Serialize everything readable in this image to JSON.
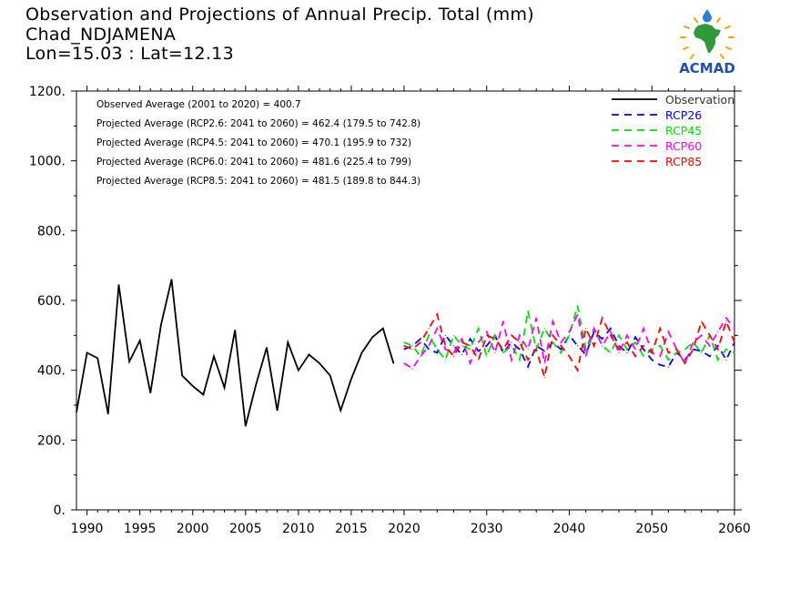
{
  "header": {
    "title": "Observation and Projections of Annual Precip. Total (mm)",
    "location": "Chad_NDJAMENA",
    "coords": "Lon=15.03 : Lat=12.13"
  },
  "logo": {
    "text": "ACMAD",
    "colors": {
      "africa": "#2e9a3c",
      "rays": "#f0a500",
      "drop": "#2a7fd4",
      "text": "#1f4fa8"
    }
  },
  "chart_data": {
    "type": "line",
    "xlim": [
      1989,
      2060
    ],
    "ylim": [
      0,
      1200
    ],
    "y_ticks": [
      0,
      200,
      400,
      600,
      800,
      1000,
      1200
    ],
    "y_tick_labels": [
      "0.",
      "200.",
      "400.",
      "600.",
      "800.",
      "1000.",
      "1200."
    ],
    "x_ticks_left": [
      1990,
      1995,
      2000,
      2005,
      2010,
      2015,
      2020
    ],
    "x_ticks_right": [
      2030,
      2040,
      2050,
      2060
    ],
    "annotations": [
      "Observed Average (2001 to 2020) = 400.7",
      "Projected Average (RCP2.6: 2041 to 2060) = 462.4 (179.5 to 742.8)",
      "Projected Average (RCP4.5: 2041 to 2060) = 470.1 (195.9 to 732)",
      "Projected Average (RCP6.0: 2041 to 2060) = 481.6 (225.4 to 799)",
      "Projected Average (RCP8.5: 2041 to 2060) = 481.5 (189.8 to 844.3)"
    ],
    "legend_position": "top-right",
    "series": [
      {
        "name": "Observation",
        "color": "#000000",
        "dash": false,
        "x": [
          1989,
          1990,
          1991,
          1992,
          1993,
          1994,
          1995,
          1996,
          1997,
          1998,
          1999,
          2000,
          2001,
          2002,
          2003,
          2004,
          2005,
          2006,
          2007,
          2008,
          2009,
          2010,
          2011,
          2012,
          2013,
          2014,
          2015,
          2016,
          2017,
          2018,
          2019,
          2020
        ],
        "values": [
          280,
          450,
          435,
          275,
          645,
          425,
          485,
          335,
          530,
          660,
          385,
          355,
          330,
          440,
          350,
          515,
          240,
          360,
          465,
          285,
          480,
          400,
          445,
          420,
          385,
          285,
          375,
          450,
          495,
          520,
          420,
          null
        ]
      },
      {
        "name": "RCP26",
        "color": "#0000ff",
        "dash": true,
        "x": [
          2020,
          2021,
          2022,
          2023,
          2024,
          2025,
          2026,
          2027,
          2028,
          2029,
          2030,
          2031,
          2032,
          2033,
          2034,
          2035,
          2036,
          2037,
          2038,
          2039,
          2040,
          2041,
          2042,
          2043,
          2044,
          2045,
          2046,
          2047,
          2048,
          2049,
          2050,
          2051,
          2052,
          2053,
          2054,
          2055,
          2056,
          2057,
          2058,
          2059,
          2060
        ],
        "values": [
          460,
          470,
          490,
          460,
          450,
          500,
          470,
          445,
          490,
          455,
          470,
          500,
          450,
          480,
          460,
          410,
          470,
          455,
          480,
          460,
          500,
          470,
          445,
          510,
          490,
          520,
          470,
          450,
          495,
          460,
          430,
          415,
          410,
          450,
          430,
          460,
          455,
          440,
          470,
          430,
          480
        ]
      },
      {
        "name": "RCP45",
        "color": "#00dd00",
        "dash": true,
        "x": [
          2020,
          2021,
          2022,
          2023,
          2024,
          2025,
          2026,
          2027,
          2028,
          2029,
          2030,
          2031,
          2032,
          2033,
          2034,
          2035,
          2036,
          2037,
          2038,
          2039,
          2040,
          2041,
          2042,
          2043,
          2044,
          2045,
          2046,
          2047,
          2048,
          2049,
          2050,
          2051,
          2052,
          2053,
          2054,
          2055,
          2056,
          2057,
          2058,
          2059,
          2060
        ],
        "values": [
          480,
          470,
          440,
          500,
          460,
          430,
          500,
          470,
          460,
          520,
          440,
          500,
          450,
          470,
          430,
          570,
          460,
          520,
          480,
          450,
          500,
          585,
          460,
          520,
          470,
          450,
          500,
          460,
          480,
          440,
          460,
          470,
          430,
          450,
          460,
          480,
          450,
          500,
          430,
          460,
          450
        ]
      },
      {
        "name": "RCP60",
        "color": "#ff00ff",
        "dash": true,
        "x": [
          2020,
          2021,
          2022,
          2023,
          2024,
          2025,
          2026,
          2027,
          2028,
          2029,
          2030,
          2031,
          2032,
          2033,
          2034,
          2035,
          2036,
          2037,
          2038,
          2039,
          2040,
          2041,
          2042,
          2043,
          2044,
          2045,
          2046,
          2047,
          2048,
          2049,
          2050,
          2051,
          2052,
          2053,
          2054,
          2055,
          2056,
          2057,
          2058,
          2059,
          2060
        ],
        "values": [
          420,
          405,
          440,
          470,
          520,
          460,
          450,
          490,
          420,
          480,
          510,
          450,
          540,
          430,
          500,
          460,
          550,
          420,
          540,
          480,
          510,
          560,
          440,
          520,
          470,
          510,
          450,
          500,
          460,
          520,
          450,
          440,
          510,
          460,
          420,
          480,
          500,
          470,
          510,
          550,
          520
        ]
      },
      {
        "name": "RCP85",
        "color": "#ff0000",
        "dash": true,
        "x": [
          2020,
          2021,
          2022,
          2023,
          2024,
          2025,
          2026,
          2027,
          2028,
          2029,
          2030,
          2031,
          2032,
          2033,
          2034,
          2035,
          2036,
          2037,
          2038,
          2039,
          2040,
          2041,
          2042,
          2043,
          2044,
          2045,
          2046,
          2047,
          2048,
          2049,
          2050,
          2051,
          2052,
          2053,
          2054,
          2055,
          2056,
          2057,
          2058,
          2059,
          2060
        ],
        "values": [
          470,
          460,
          480,
          520,
          560,
          470,
          440,
          480,
          470,
          430,
          500,
          490,
          460,
          500,
          480,
          430,
          460,
          380,
          500,
          470,
          440,
          400,
          520,
          470,
          550,
          500,
          460,
          480,
          440,
          470,
          450,
          520,
          450,
          460,
          420,
          460,
          540,
          500,
          460,
          540,
          480
        ]
      }
    ]
  }
}
